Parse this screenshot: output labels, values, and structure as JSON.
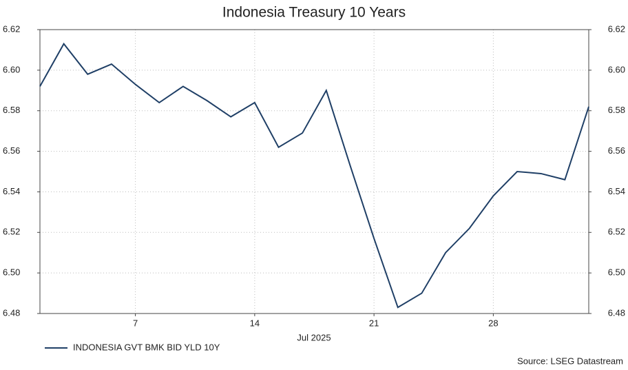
{
  "chart_data": {
    "type": "line",
    "title": "Indonesia Treasury 10 Years",
    "xlabel": "Jul 2025",
    "categories": [
      null,
      null,
      null,
      null,
      "7",
      null,
      null,
      null,
      null,
      "14",
      null,
      null,
      null,
      null,
      "21",
      null,
      null,
      null,
      null,
      "28",
      null,
      null,
      null,
      null
    ],
    "series": [
      {
        "name": "INDONESIA GVT BMK BID YLD 10Y",
        "color": "#1f3f66",
        "values": [
          6.592,
          6.613,
          6.598,
          6.603,
          6.593,
          6.584,
          6.592,
          6.585,
          6.577,
          6.584,
          6.562,
          6.569,
          6.59,
          6.553,
          6.517,
          6.483,
          6.49,
          6.51,
          6.522,
          6.538,
          6.55,
          6.549,
          6.546,
          6.582
        ]
      }
    ],
    "ylim": [
      6.48,
      6.62
    ],
    "yticks": [
      6.48,
      {
        "value": 6.5,
        "label": "6.50"
      },
      6.52,
      6.54,
      6.56,
      6.58,
      {
        "value": 6.6,
        "label": "6.60"
      },
      6.62
    ],
    "grid": true,
    "legend": "bottom-left",
    "source": "Source: LSEG Datastream"
  }
}
